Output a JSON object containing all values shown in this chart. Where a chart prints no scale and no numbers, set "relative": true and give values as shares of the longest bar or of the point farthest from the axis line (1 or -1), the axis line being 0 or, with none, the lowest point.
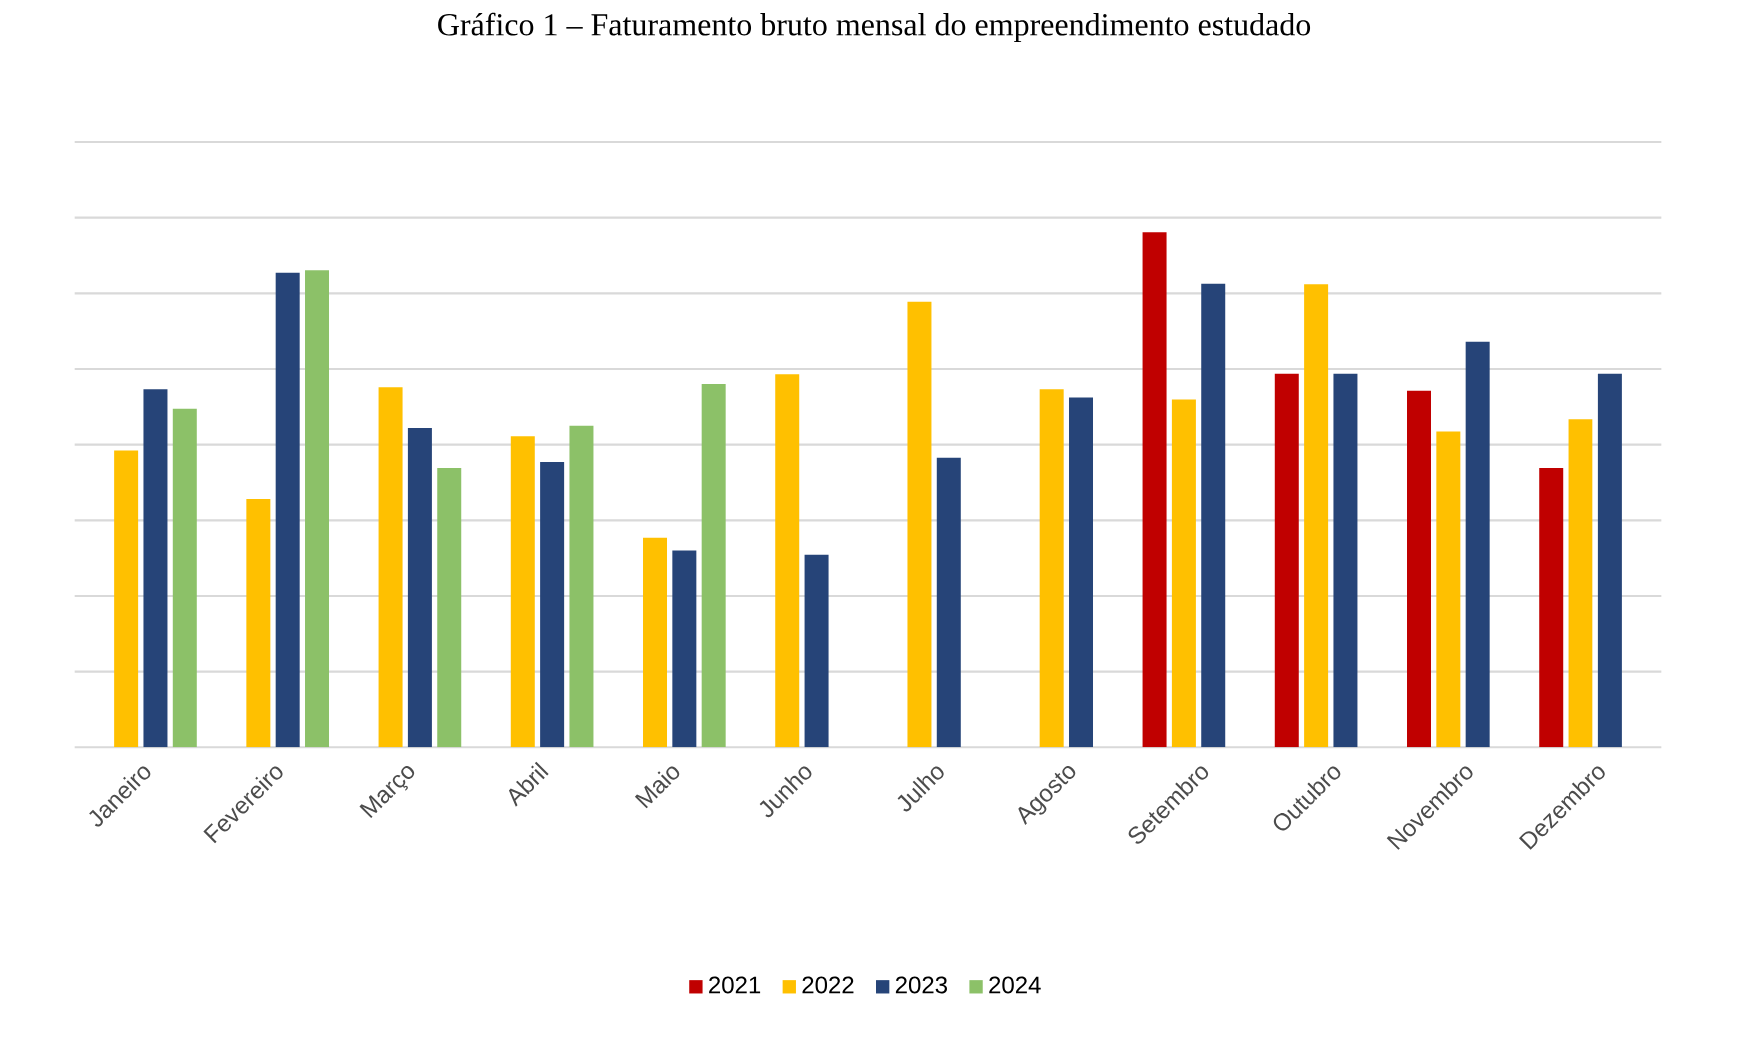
{
  "chart_data": {
    "type": "bar",
    "title": "Gráfico 1 – Faturamento bruto mensal do empreendimento estudado",
    "relative": true,
    "grid": "y",
    "legend": "bottom",
    "categories": [
      "Janeiro",
      "Fevereiro",
      "Março",
      "Abril",
      "Maio",
      "Junho",
      "Julho",
      "Agosto",
      "Setembro",
      "Outubro",
      "Novembro",
      "Dezembro"
    ],
    "series": [
      {
        "name": "2021",
        "color": "#c00000",
        "values": [
          null,
          null,
          null,
          null,
          null,
          null,
          null,
          null,
          1.0,
          0.725,
          0.692,
          0.542
        ]
      },
      {
        "name": "2022",
        "color": "#ffc000",
        "values": [
          0.576,
          0.482,
          0.699,
          0.604,
          0.407,
          0.724,
          0.865,
          0.695,
          0.675,
          0.899,
          0.613,
          0.637
        ]
      },
      {
        "name": "2023",
        "color": "#264478",
        "values": [
          0.695,
          0.921,
          0.62,
          0.554,
          0.382,
          0.374,
          0.562,
          0.679,
          0.9,
          0.725,
          0.787,
          0.725
        ]
      },
      {
        "name": "2024",
        "color": "#8cc168",
        "values": [
          0.657,
          0.926,
          0.542,
          0.624,
          0.705,
          null,
          null,
          null,
          null,
          null,
          null,
          null
        ]
      }
    ]
  }
}
